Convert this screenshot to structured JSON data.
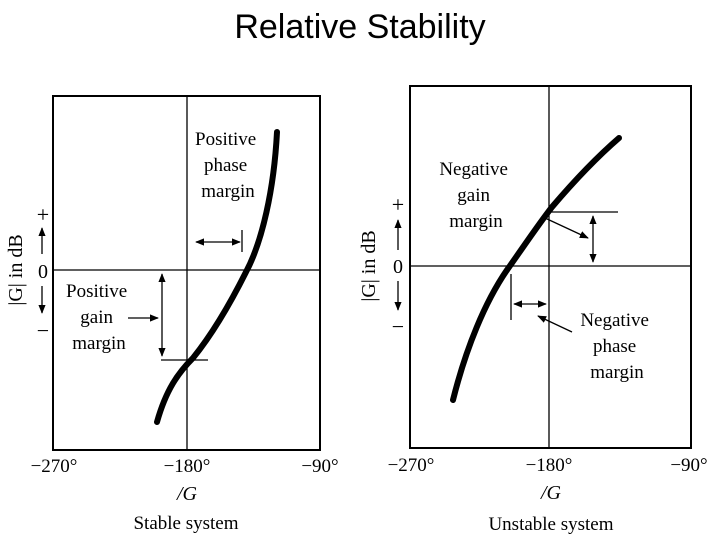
{
  "title": "Relative Stability",
  "left": {
    "caption": "Stable system",
    "x_ticks": [
      "−270°",
      "−180°",
      "−90°"
    ],
    "xlabel": "/G",
    "ylabel": "|G| in dB",
    "y_plus": "+",
    "y_zero": "0",
    "y_minus": "−",
    "phase_label": [
      "Positive",
      "phase",
      "margin"
    ],
    "gain_label": [
      "Positive",
      "gain",
      "margin"
    ]
  },
  "right": {
    "caption": "Unstable system",
    "x_ticks": [
      "−270°",
      "−180°",
      "−90°"
    ],
    "xlabel": "/G",
    "ylabel": "|G| in dB",
    "y_plus": "+",
    "y_zero": "0",
    "y_minus": "−",
    "gain_label": [
      "Negative",
      "gain",
      "margin"
    ],
    "phase_label": [
      "Negative",
      "phase",
      "margin"
    ]
  }
}
